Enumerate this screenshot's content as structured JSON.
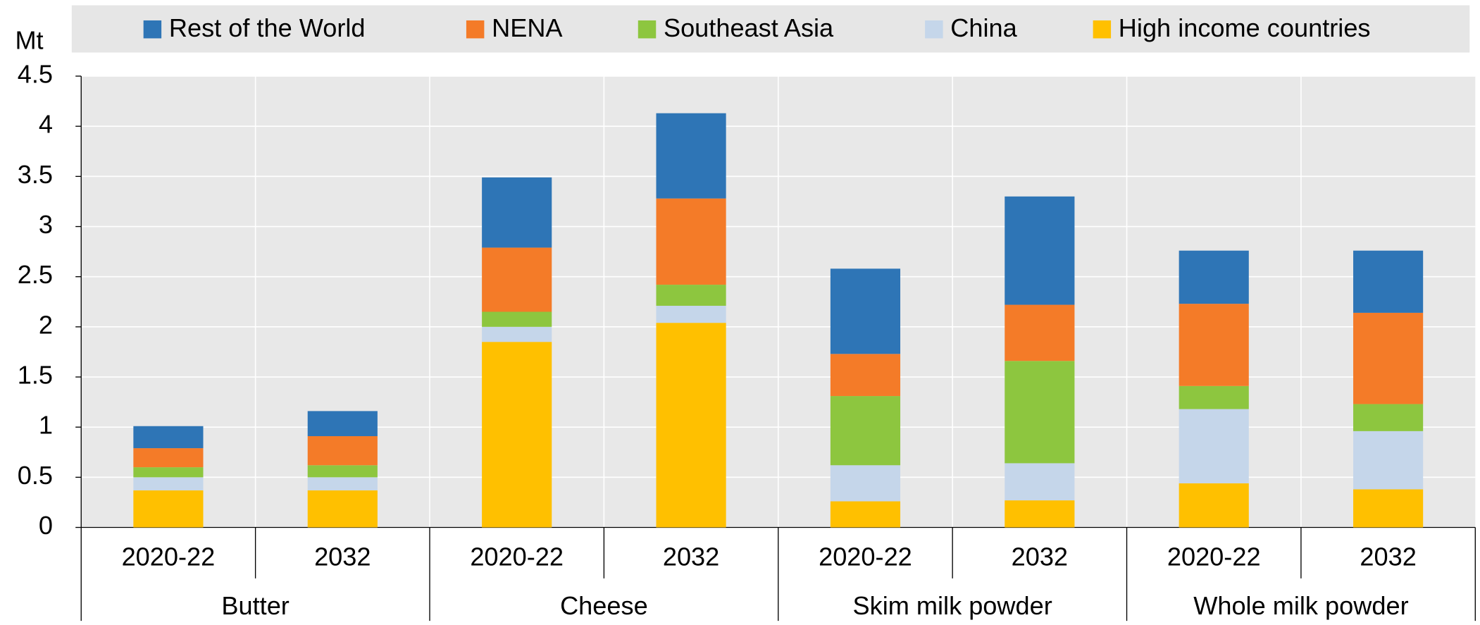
{
  "chart_data": {
    "type": "stacked-bar",
    "ylabel": "Mt",
    "categories": [
      "2020-22",
      "2032",
      "2020-22",
      "2032",
      "2020-22",
      "2032",
      "2020-22",
      "2032"
    ],
    "groups": [
      "Butter",
      "Cheese",
      "Skim milk powder",
      "Whole milk powder"
    ],
    "series": [
      {
        "name": "High income countries",
        "color": "#ffc000",
        "values": [
          0.37,
          0.37,
          1.85,
          2.04,
          0.26,
          0.27,
          0.44,
          0.38
        ]
      },
      {
        "name": "China",
        "color": "#c5d6ea",
        "values": [
          0.13,
          0.13,
          0.15,
          0.17,
          0.36,
          0.37,
          0.74,
          0.58
        ]
      },
      {
        "name": "Southeast Asia",
        "color": "#8dc63f",
        "values": [
          0.1,
          0.12,
          0.15,
          0.21,
          0.69,
          1.02,
          0.23,
          0.27
        ]
      },
      {
        "name": "NENA",
        "color": "#f47b28",
        "values": [
          0.19,
          0.29,
          0.64,
          0.86,
          0.42,
          0.56,
          0.82,
          0.91
        ]
      },
      {
        "name": "Rest of the World",
        "color": "#2e75b6",
        "values": [
          0.22,
          0.25,
          0.7,
          0.85,
          0.85,
          1.08,
          0.53,
          0.62
        ]
      }
    ],
    "ylim": [
      0,
      4.5
    ],
    "yticks": [
      0,
      0.5,
      1,
      1.5,
      2,
      2.5,
      3,
      3.5,
      4,
      4.5
    ],
    "grid": true
  }
}
